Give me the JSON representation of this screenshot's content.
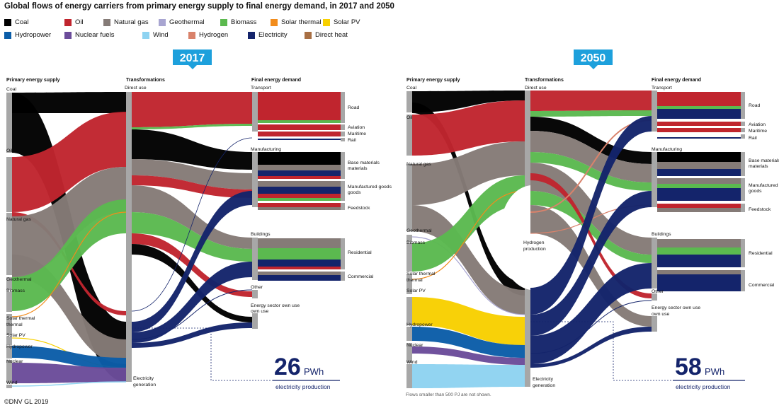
{
  "title": "Global flows of energy carriers from primary energy supply to final energy demand, in 2017 and 2050",
  "legend": [
    {
      "label": "Coal",
      "color": "#000000"
    },
    {
      "label": "Oil",
      "color": "#c0252e"
    },
    {
      "label": "Natural gas",
      "color": "#857b77"
    },
    {
      "label": "Geothermal",
      "color": "#a8a5d1"
    },
    {
      "label": "Biomass",
      "color": "#5bb94f"
    },
    {
      "label": "Solar thermal",
      "color": "#f28c1c"
    },
    {
      "label": "Solar PV",
      "color": "#f8d000"
    },
    {
      "label": "Hydropower",
      "color": "#0b5da8"
    },
    {
      "label": "Nuclear fuels",
      "color": "#6b4c9a"
    },
    {
      "label": "Wind",
      "color": "#8ed3f1"
    },
    {
      "label": "Hydrogen",
      "color": "#d9826b"
    },
    {
      "label": "Electricity",
      "color": "#14246b"
    },
    {
      "label": "Direct heat",
      "color": "#a86f44"
    }
  ],
  "panels": [
    {
      "year": "2017",
      "col_supply": "Primary energy supply",
      "col_transform": "Transformations",
      "col_demand": "Final energy demand",
      "supply_labels": [
        "Coal",
        "Oil",
        "Natural gas",
        "Geothermal",
        "Biomass",
        "Solar thermal",
        "Solar PV",
        "Hydropower",
        "Nuclear",
        "Wind"
      ],
      "transform_labels": [
        "Direct use",
        "Electricity generation"
      ],
      "demand_labels": [
        "Transport",
        "Manufacturing",
        "Buildings",
        "Other",
        "Energy sector own use"
      ],
      "sub_labels": [
        "Road",
        "Aviation",
        "Maritime",
        "Rail",
        "Base materials",
        "Manufactured goods",
        "Feedstock",
        "Residential",
        "Commercial"
      ],
      "electricity_value": "26",
      "electricity_unit": "PWh",
      "electricity_caption": "electricity production"
    },
    {
      "year": "2050",
      "col_supply": "Primary energy supply",
      "col_transform": "Transformations",
      "col_demand": "Final energy demand",
      "supply_labels": [
        "Coal",
        "Oil",
        "Natural gas",
        "Geothermal",
        "Biomass",
        "Solar thermal",
        "Solar PV",
        "Hydropower",
        "Nuclear",
        "Wind"
      ],
      "transform_labels": [
        "Direct use",
        "Hydrogen production",
        "Electricity generation"
      ],
      "demand_labels": [
        "Transport",
        "Manufacturing",
        "Buildings",
        "Other",
        "Energy sector own use"
      ],
      "sub_labels": [
        "Road",
        "Aviation",
        "Maritime",
        "Rail",
        "Base materials",
        "Manufactured goods",
        "Feedstock",
        "Residential",
        "Commercial"
      ],
      "electricity_value": "58",
      "electricity_unit": "PWh",
      "electricity_caption": "electricity production"
    }
  ],
  "footnote": "Flows smaller than 500 PJ are not shown.",
  "copyright": "©DNV GL 2019"
}
